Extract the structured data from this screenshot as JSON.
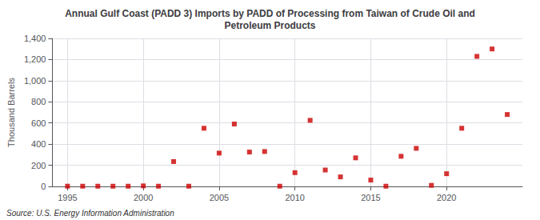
{
  "chart_data": {
    "type": "scatter",
    "title": "Annual Gulf Coast (PADD 3) Imports by PADD of Processing from Taiwan of Crude Oil and\nPetroleum Products",
    "ylabel": "Thousand Barrels",
    "annotation": "Source: U.S. Energy Information Administration",
    "color": "#cc0000",
    "marker": "square",
    "grid": true,
    "xlim": [
      1994,
      2025
    ],
    "xticks": [
      1995,
      2000,
      2005,
      2010,
      2015,
      2020
    ],
    "ylim": [
      0,
      1400
    ],
    "yticks": [
      0,
      200,
      400,
      600,
      800,
      {
        "value": 1000,
        "label": "1,000"
      },
      {
        "value": 1200,
        "label": "1,200"
      },
      {
        "value": 1400,
        "label": "1,400"
      }
    ],
    "x": [
      1995,
      1996,
      1997,
      1998,
      1999,
      2000,
      2001,
      2002,
      2003,
      2004,
      2005,
      2006,
      2007,
      2008,
      2009,
      2010,
      2011,
      2012,
      2013,
      2014,
      2015,
      2016,
      2017,
      2018,
      2019,
      2020,
      2021,
      2022,
      2023,
      2024
    ],
    "values": [
      2,
      2,
      2,
      2,
      2,
      5,
      2,
      235,
      2,
      550,
      315,
      590,
      325,
      330,
      2,
      130,
      625,
      155,
      90,
      270,
      60,
      2,
      285,
      360,
      10,
      120,
      550,
      1230,
      1300,
      680
    ]
  }
}
